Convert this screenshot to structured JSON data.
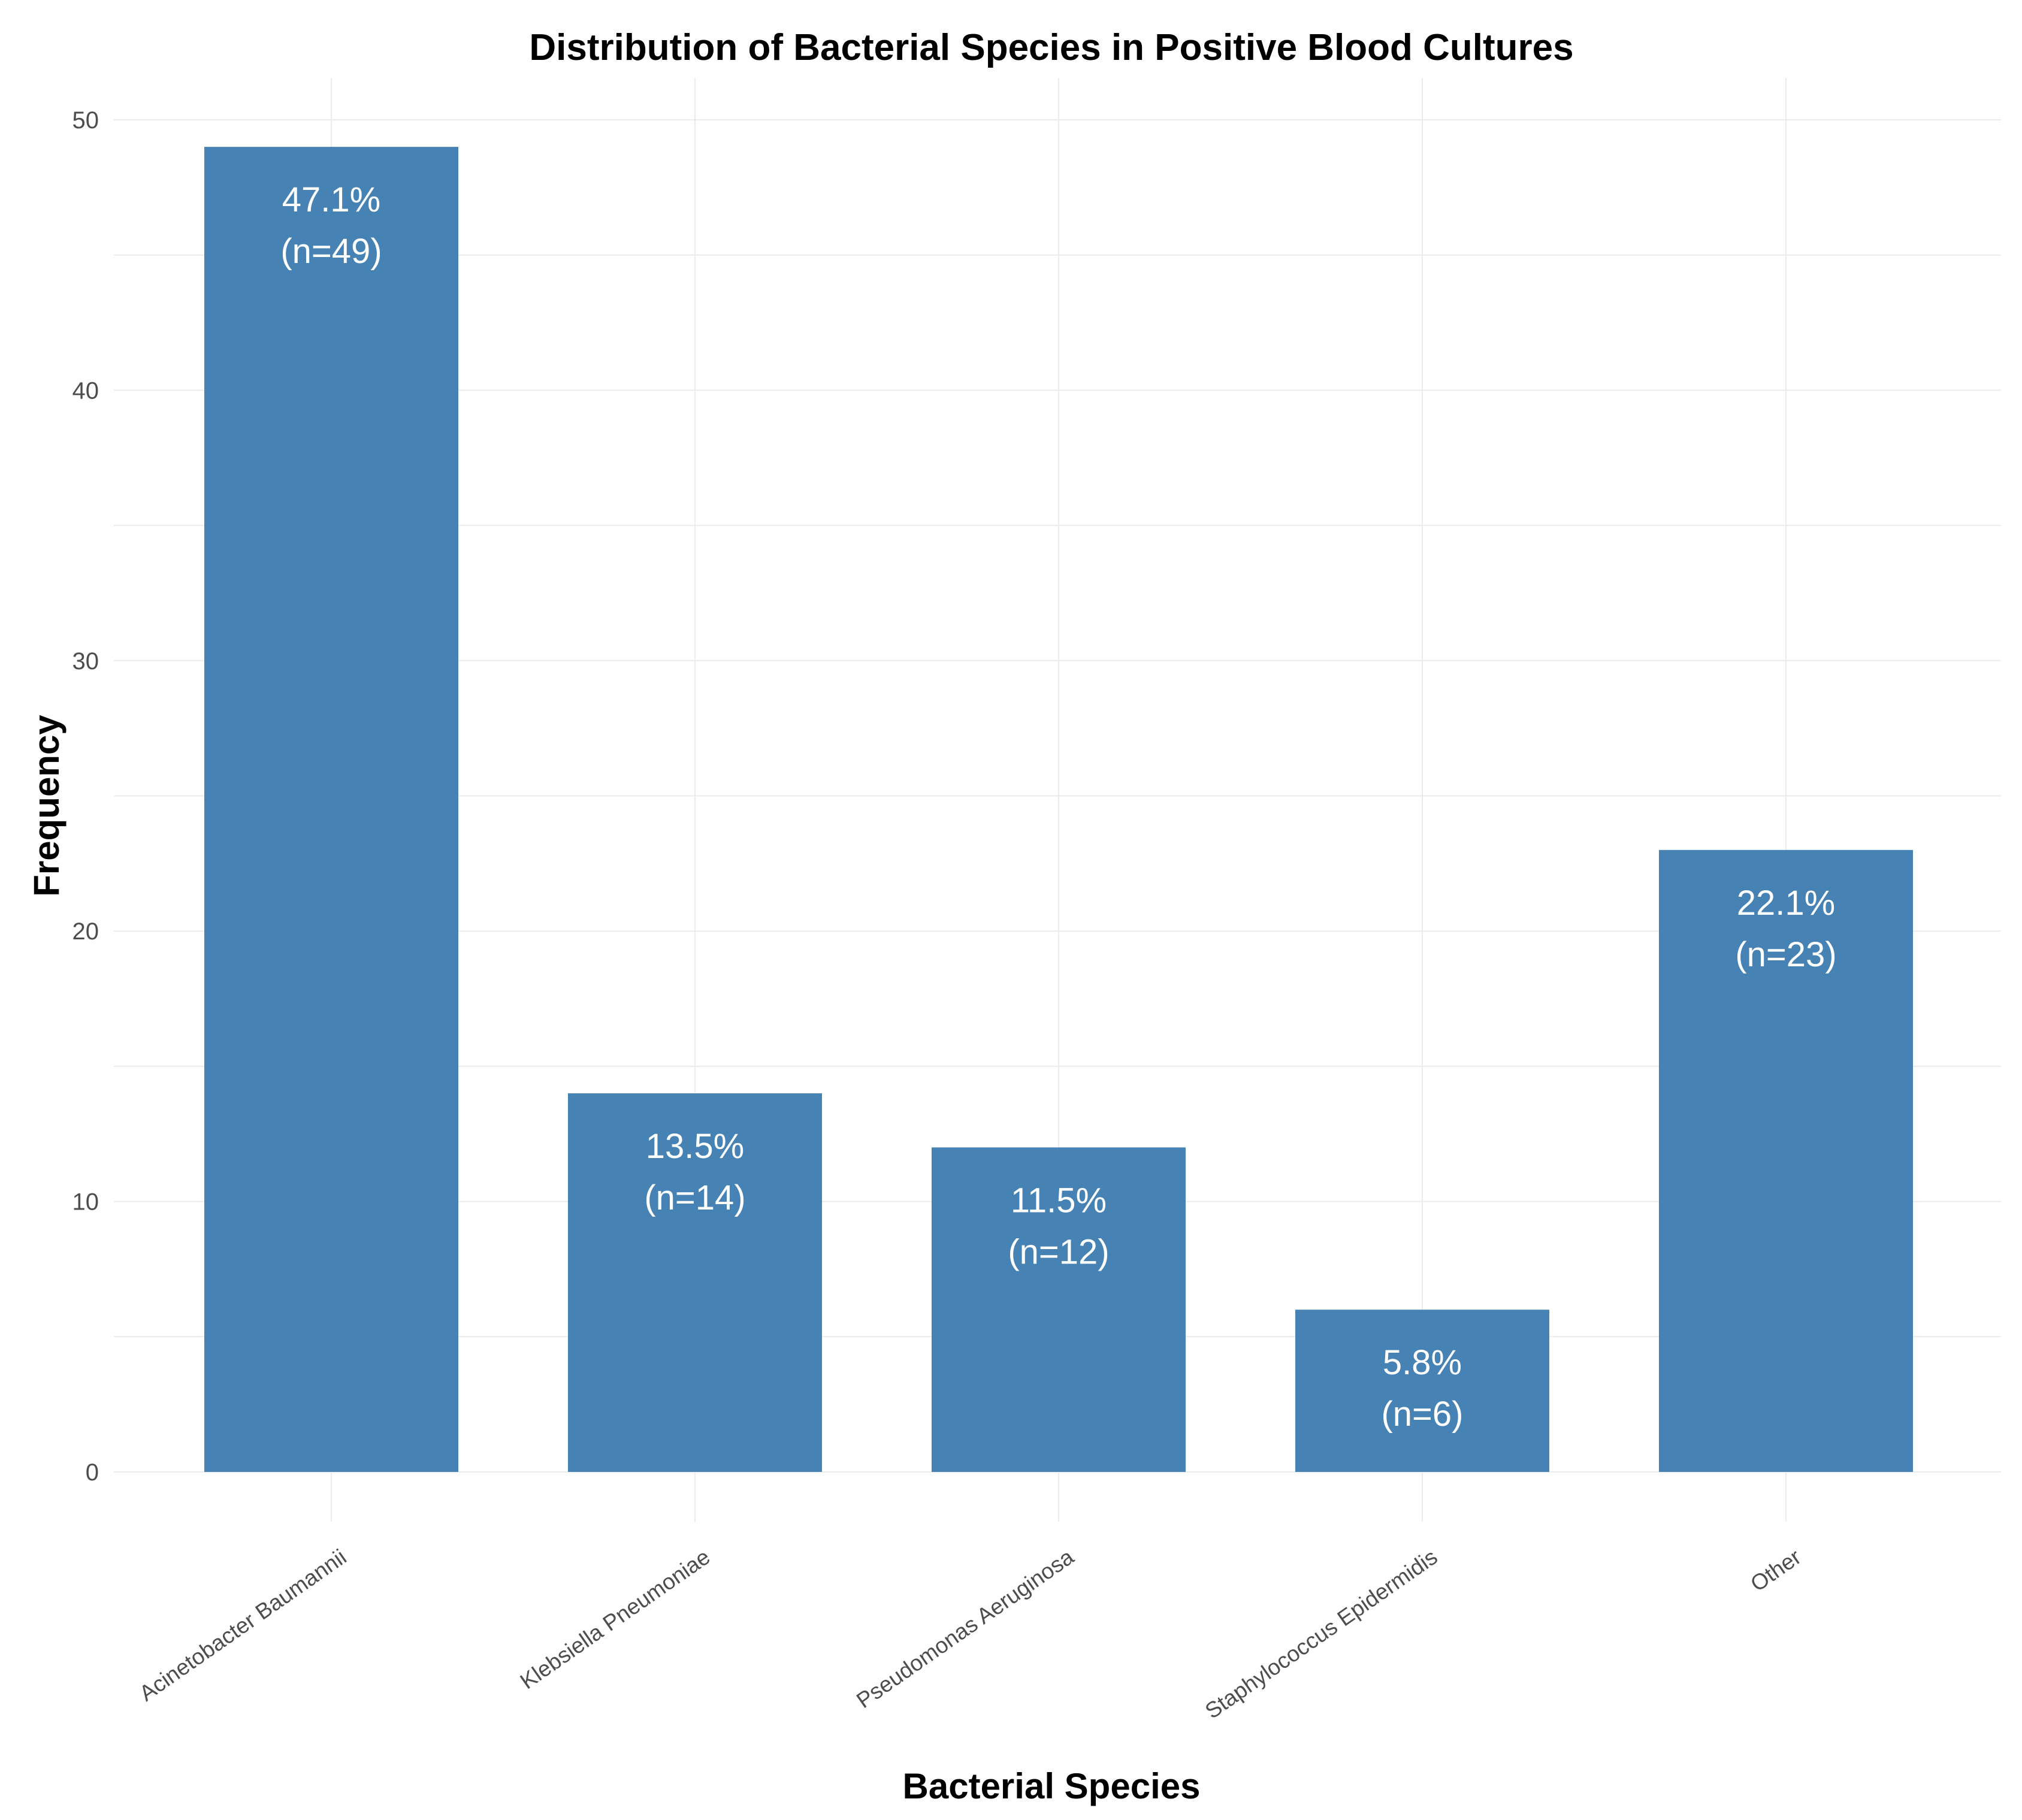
{
  "chart_data": {
    "type": "bar",
    "title": "Distribution of Bacterial Species in Positive Blood Cultures",
    "xlabel": "Bacterial Species",
    "ylabel": "Frequency",
    "categories": [
      "Acinetobacter Baumannii",
      "Klebsiella Pneumoniae",
      "Pseudomonas Aeruginosa",
      "Staphylococcus Epidermidis",
      "Other"
    ],
    "values": [
      49,
      14,
      12,
      6,
      23
    ],
    "data_labels": [
      [
        "47.1%",
        "(n=49)"
      ],
      [
        "13.5%",
        "(n=14)"
      ],
      [
        "11.5%",
        "(n=12)"
      ],
      [
        "5.8%",
        "(n=6)"
      ],
      [
        "22.1%",
        "(n=23)"
      ]
    ],
    "ylim": [
      0,
      50
    ],
    "yticks": [
      0,
      10,
      20,
      30,
      40,
      50
    ],
    "ytick_labels": [
      "0",
      "10",
      "20",
      "30",
      "40",
      "50"
    ],
    "grid": true,
    "bar_color": "#4682B4"
  }
}
